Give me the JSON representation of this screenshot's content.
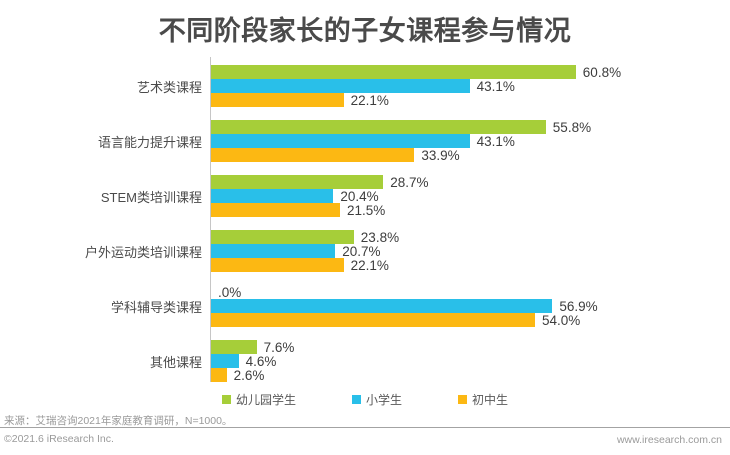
{
  "title": "不同阶段家长的子女课程参与情况",
  "chart_data": {
    "type": "bar",
    "orientation": "horizontal",
    "title": "不同阶段家长的子女课程参与情况",
    "categories": [
      "艺术类课程",
      "语言能力提升课程",
      "STEM类培训课程",
      "户外运动类培训课程",
      "学科辅导类课程",
      "其他课程"
    ],
    "series": [
      {
        "name": "幼儿园学生",
        "color": "#a6ce39",
        "values": [
          60.8,
          55.8,
          28.7,
          23.8,
          0.0,
          7.6
        ],
        "labels": [
          "60.8%",
          "55.8%",
          "28.7%",
          "23.8%",
          ".0%",
          "7.6%"
        ]
      },
      {
        "name": "小学生",
        "color": "#29bfe9",
        "values": [
          43.1,
          43.1,
          20.4,
          20.7,
          56.9,
          4.6
        ],
        "labels": [
          "43.1%",
          "43.1%",
          "20.4%",
          "20.7%",
          "56.9%",
          "4.6%"
        ]
      },
      {
        "name": "初中生",
        "color": "#fcb813",
        "values": [
          22.1,
          33.9,
          21.5,
          22.1,
          54.0,
          2.6
        ],
        "labels": [
          "22.1%",
          "33.9%",
          "21.5%",
          "22.1%",
          "54.0%",
          "2.6%"
        ]
      }
    ],
    "value_unit": "%",
    "xlim": [
      0,
      65
    ],
    "grid": false,
    "legend_position": "bottom"
  },
  "footer": {
    "source": "来源：艾瑞咨询2021年家庭教育调研，N=1000。",
    "copyright": "©2021.6 iResearch Inc.",
    "website": "www.iresearch.com.cn"
  }
}
